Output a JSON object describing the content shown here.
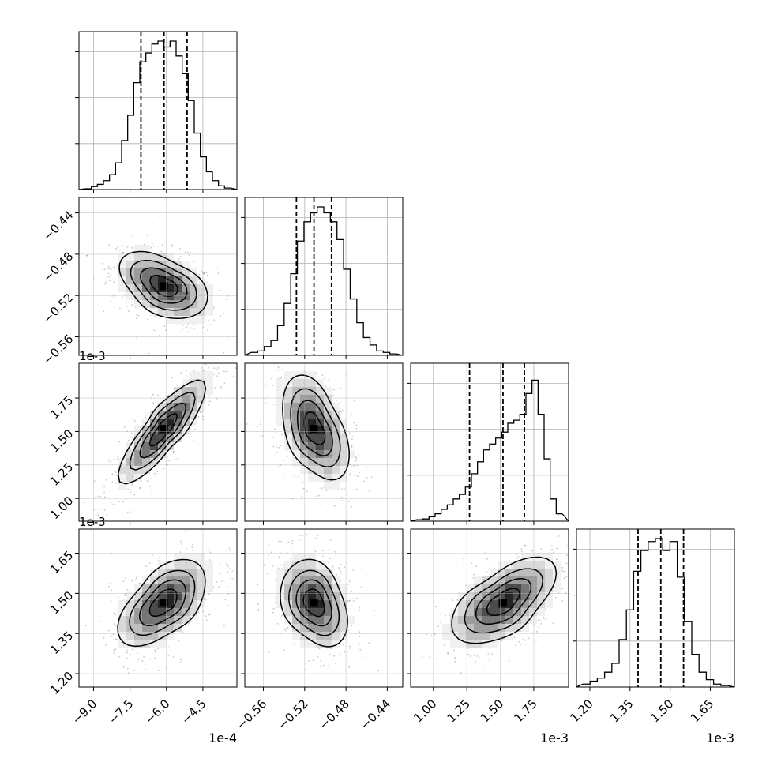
{
  "chart_data": {
    "type": "corner",
    "grid": true,
    "quantile_lines": "dashed",
    "scale_labels": {
      "p0": "1e-4",
      "p1": "",
      "p2": "1e-3",
      "p3": "1e-3"
    },
    "row_offset_labels": [
      "1e-3",
      "1e-3"
    ],
    "ticks": {
      "p0": [
        "−9.0",
        "−7.5",
        "−6.0",
        "−4.5"
      ],
      "p1": [
        "−0.56",
        "−0.52",
        "−0.48",
        "−0.44"
      ],
      "p2": [
        "1.00",
        "1.25",
        "1.50",
        "1.75"
      ],
      "p3": [
        "1.20",
        "1.35",
        "1.50",
        "1.65"
      ]
    },
    "ranges": {
      "p0": [
        -9.6,
        -3.1
      ],
      "p1": [
        -0.578,
        -0.425
      ],
      "p2": [
        0.83,
        2.01
      ],
      "p3": [
        1.15,
        1.74
      ]
    },
    "means": {
      "p0": -6.1,
      "p1": -0.511,
      "p2": 1.52,
      "p3": 1.465
    },
    "quantiles": {
      "p0": [
        -7.05,
        -6.1,
        -5.15
      ],
      "p1": [
        -0.528,
        -0.511,
        -0.494
      ],
      "p2": [
        1.27,
        1.52,
        1.68
      ],
      "p3": [
        1.38,
        1.465,
        1.55
      ]
    },
    "correlations": {
      "p0_p1": -0.45,
      "p0_p2": 0.85,
      "p1_p2": -0.45,
      "p0_p3": 0.55,
      "p1_p3": -0.3,
      "p2_p3": 0.6
    },
    "histograms": {
      "p0": [
        0.005,
        0.02,
        0.035,
        0.06,
        0.1,
        0.18,
        0.33,
        0.5,
        0.72,
        0.86,
        0.92,
        0.98,
        1.0,
        0.96,
        1.0,
        0.9,
        0.78,
        0.6,
        0.38,
        0.22,
        0.12,
        0.06,
        0.025,
        0.01
      ],
      "p1": [
        0.02,
        0.03,
        0.06,
        0.1,
        0.2,
        0.35,
        0.55,
        0.77,
        0.9,
        0.96,
        1.0,
        0.96,
        0.9,
        0.78,
        0.58,
        0.38,
        0.22,
        0.12,
        0.07,
        0.03,
        0.02,
        0.01
      ],
      "p2": [
        0.01,
        0.015,
        0.03,
        0.05,
        0.08,
        0.11,
        0.15,
        0.18,
        0.23,
        0.32,
        0.4,
        0.48,
        0.52,
        0.56,
        0.6,
        0.66,
        0.68,
        0.72,
        0.86,
        0.95,
        0.72,
        0.42,
        0.15,
        0.05
      ],
      "p3": [
        0.02,
        0.04,
        0.06,
        0.1,
        0.16,
        0.32,
        0.52,
        0.78,
        0.92,
        0.98,
        1.0,
        0.92,
        0.98,
        0.74,
        0.44,
        0.22,
        0.1,
        0.05,
        0.02,
        0.01
      ]
    }
  }
}
